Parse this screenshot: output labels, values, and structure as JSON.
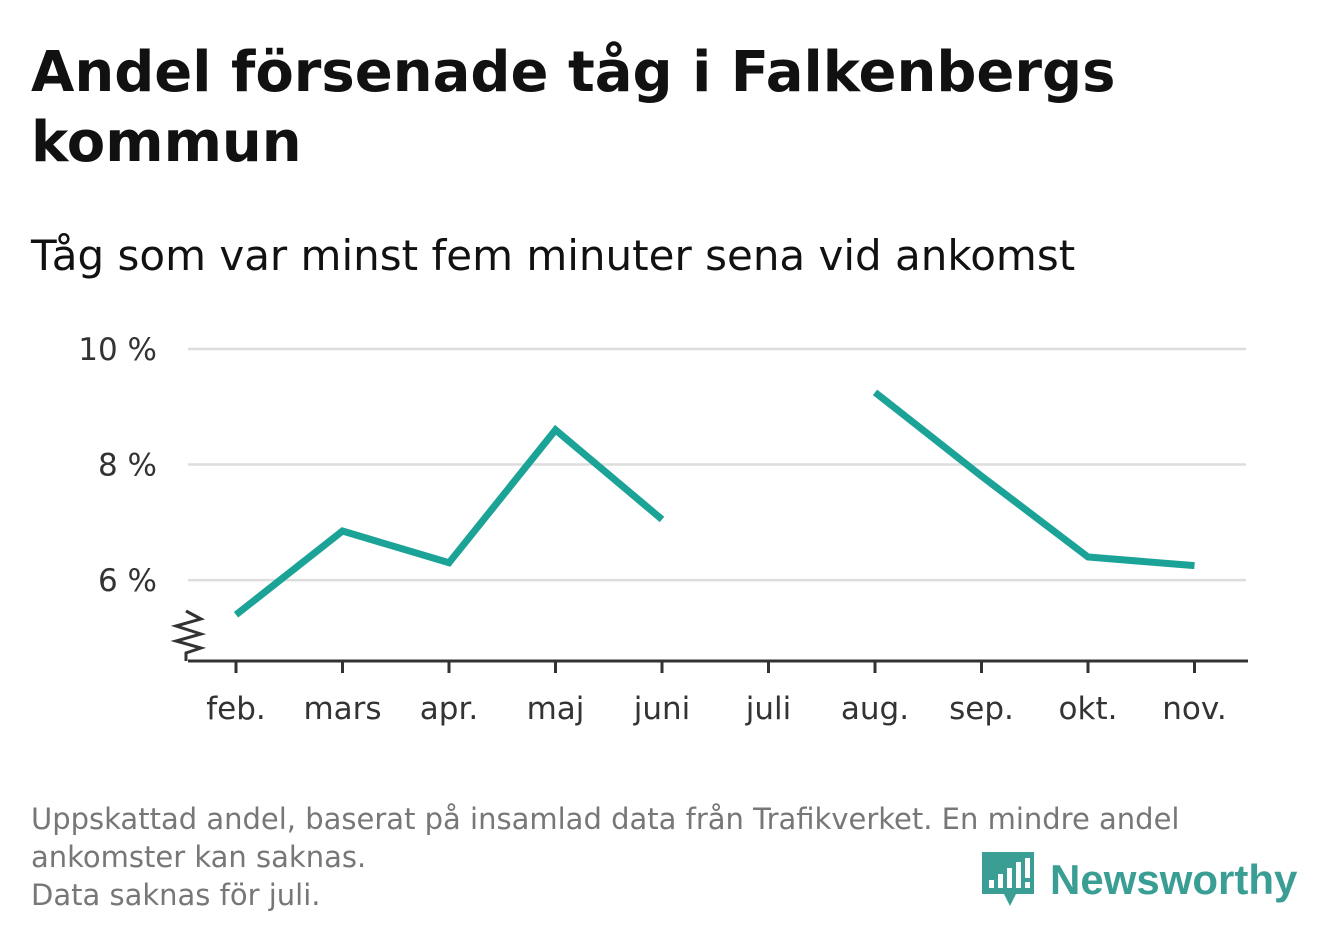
{
  "title": "Andel försenade tåg i Falkenbergs kommun",
  "subtitle": "Tåg som var minst fem minuter sena vid ankomst",
  "footnote": {
    "line1": "Uppskattad andel, baserat på insamlad data från Trafikverket. En mindre andel",
    "line2": "ankomster kan saknas.",
    "line3": "Data saknas för juli."
  },
  "logo": {
    "text": "Newsworthy",
    "icon": "newsworthy-bar-chart-icon"
  },
  "colors": {
    "line": "#1aa396",
    "grid": "#dddddd",
    "axis": "#333333",
    "logo": "#3a9e94"
  },
  "chart_data": {
    "type": "line",
    "title": "Andel försenade tåg i Falkenbergs kommun",
    "subtitle": "Tåg som var minst fem minuter sena vid ankomst",
    "xlabel": "",
    "ylabel": "",
    "categories": [
      "feb.",
      "mars",
      "apr.",
      "maj",
      "juni",
      "juli",
      "aug.",
      "sep.",
      "okt.",
      "nov."
    ],
    "series": [
      {
        "values": [
          5.4,
          6.85,
          6.3,
          8.6,
          7.05,
          null,
          9.25,
          7.8,
          6.4,
          6.25
        ]
      }
    ],
    "ylim": [
      4.6,
      10
    ],
    "yticks": [
      6,
      8,
      10
    ],
    "ytick_labels": [
      "6 %",
      "8 %",
      "10 %"
    ],
    "axis_break": true,
    "grid": true,
    "legend": "none"
  }
}
